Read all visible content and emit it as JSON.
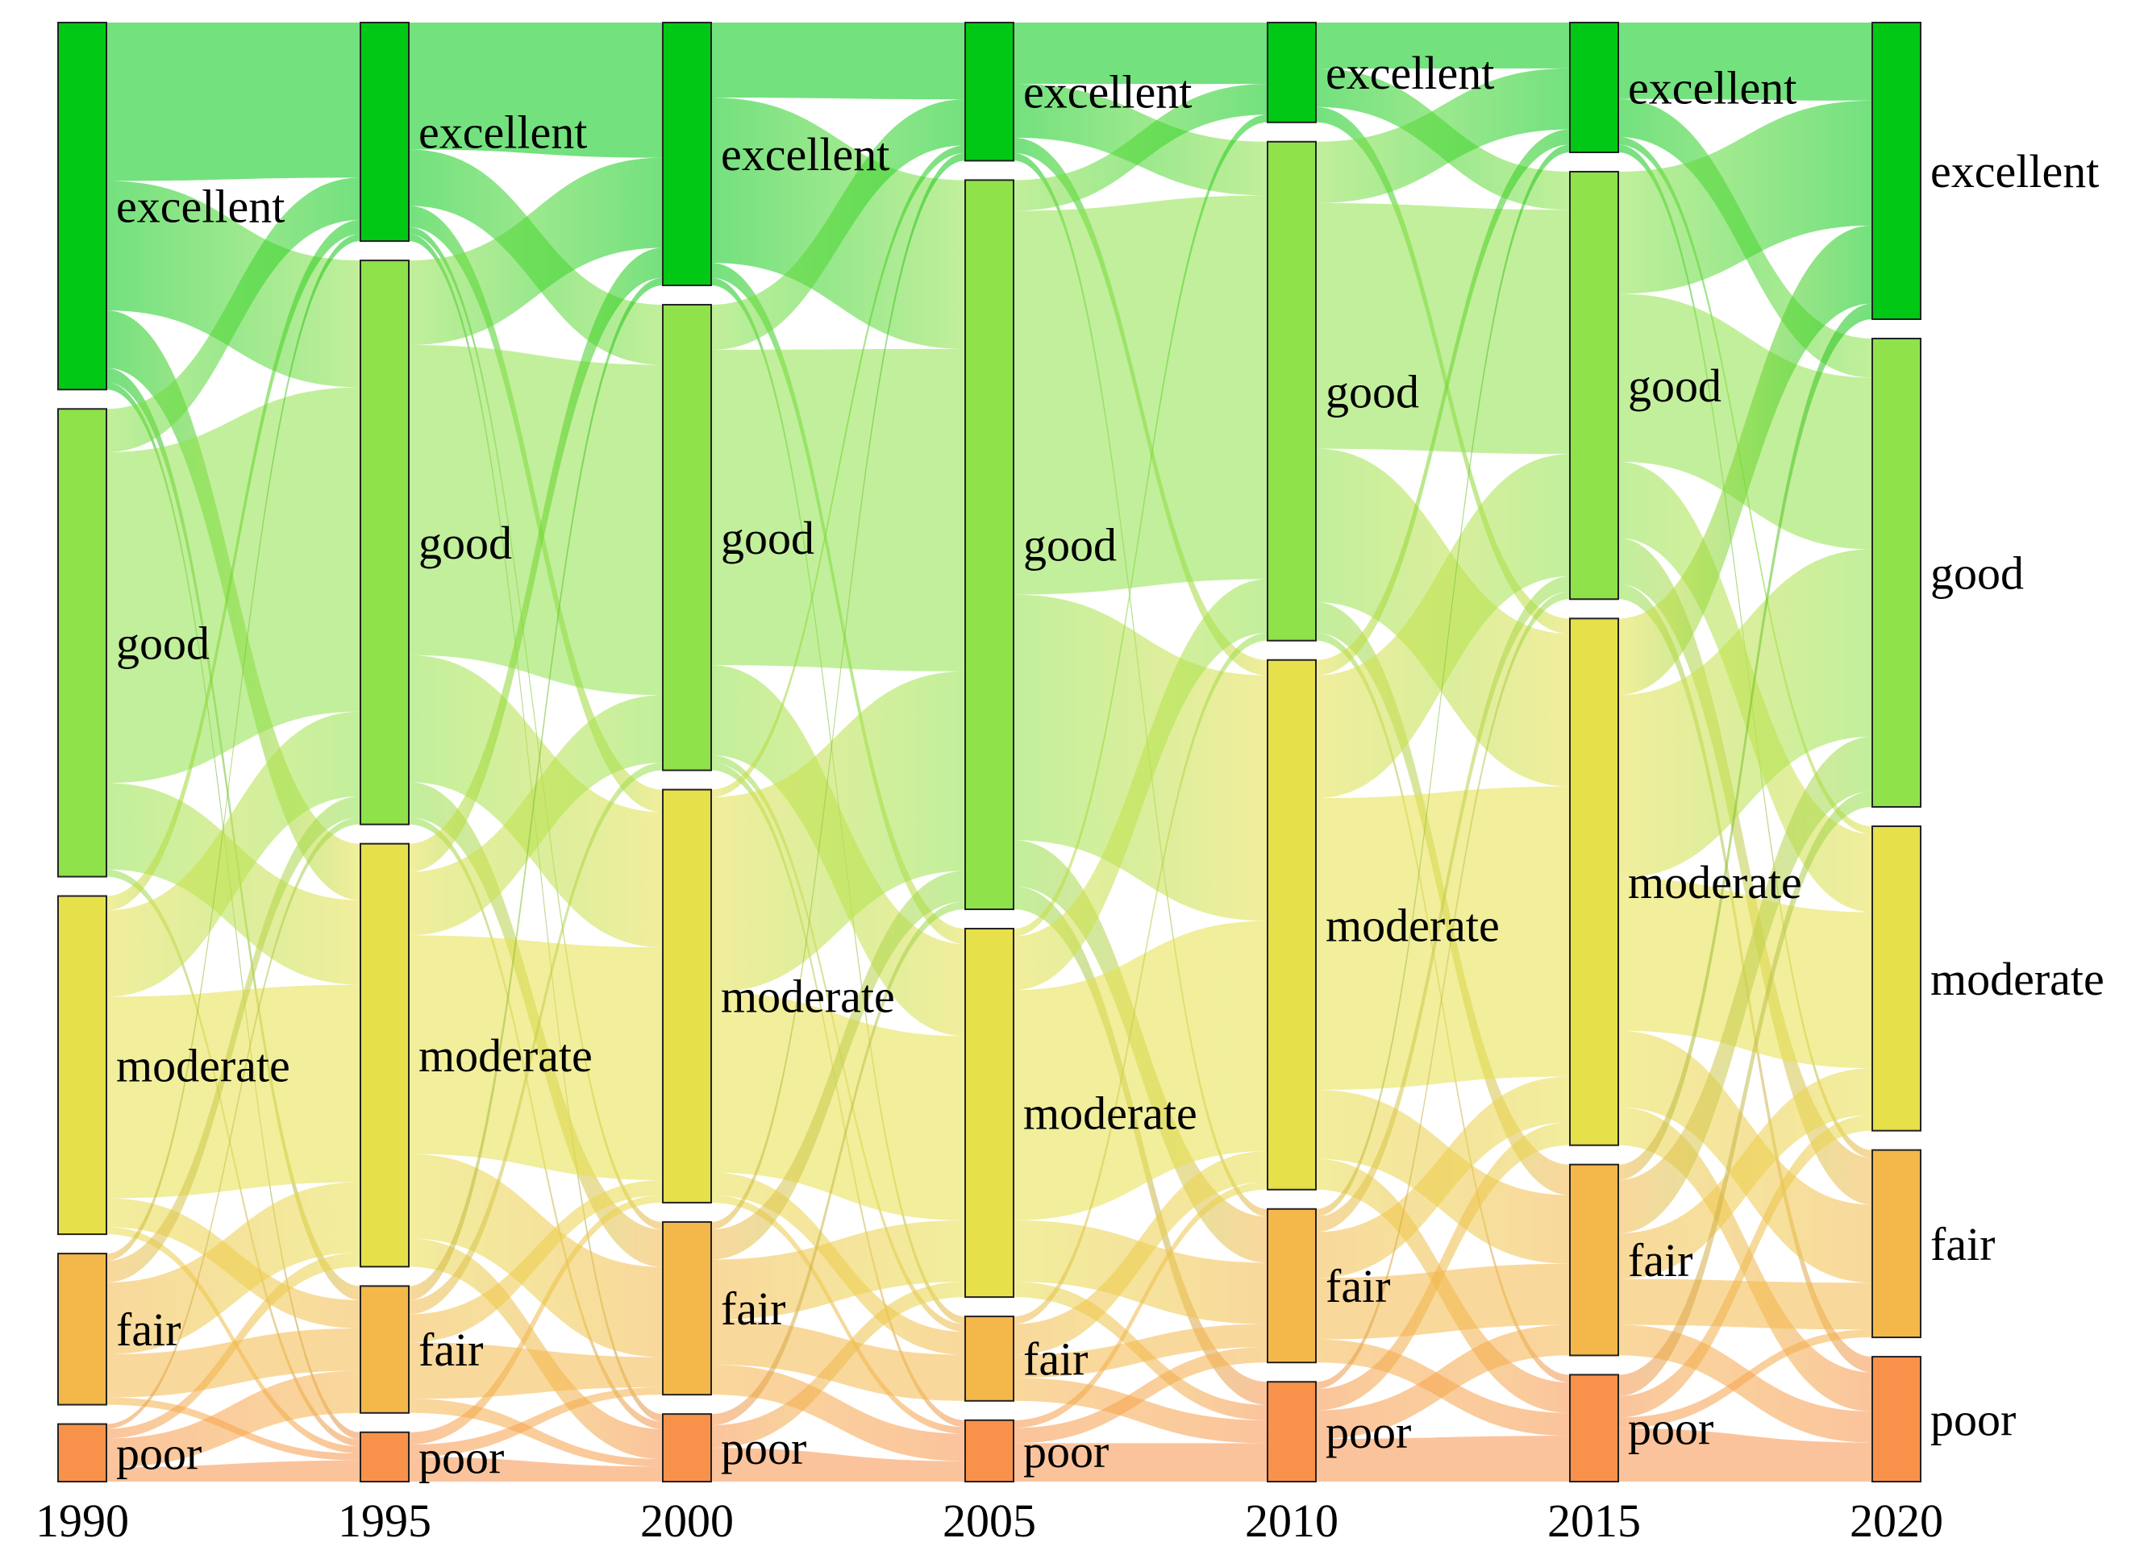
{
  "chart_data": {
    "type": "sankey",
    "title": "",
    "years": [
      "1990",
      "1995",
      "2000",
      "2005",
      "2010",
      "2015",
      "2020"
    ],
    "categories": [
      "excellent",
      "good",
      "moderate",
      "fair",
      "poor"
    ],
    "colors": {
      "excellent": "#00c814",
      "good": "#8fe24a",
      "moderate": "#e6e04a",
      "fair": "#f4b84a",
      "poor": "#f8924a"
    },
    "values": [
      [
        25.5,
        32.5,
        23.5,
        10.5,
        4.0
      ],
      [
        15.5,
        40.0,
        30.0,
        9.0,
        3.5
      ],
      [
        17.5,
        31.0,
        27.5,
        11.5,
        4.5
      ],
      [
        9.0,
        47.5,
        24.0,
        5.5,
        4.0
      ],
      [
        6.5,
        32.5,
        34.5,
        10.0,
        6.5
      ],
      [
        8.5,
        28.0,
        34.5,
        12.5,
        7.0
      ],
      [
        19.0,
        30.0,
        19.5,
        12.0,
        8.0
      ]
    ],
    "flows": [
      {
        "from_year": "1990",
        "to_year": "1995",
        "matrix": [
          [
            11,
            9,
            4,
            1,
            0.5
          ],
          [
            3,
            23,
            6,
            0,
            0.5
          ],
          [
            1,
            6,
            14,
            2,
            0.5
          ],
          [
            0.5,
            1.5,
            5,
            3,
            0.5
          ],
          [
            0,
            0.5,
            1,
            3,
            1.5
          ]
        ]
      },
      {
        "from_year": "1995",
        "to_year": "2000",
        "matrix": [
          [
            9,
            4,
            1.5,
            0.5,
            0.5
          ],
          [
            6,
            22,
            9,
            2.5,
            0.5
          ],
          [
            2,
            4.5,
            15.5,
            6,
            2
          ],
          [
            0.5,
            0.5,
            1,
            2,
            0.5
          ],
          [
            0,
            0,
            0.5,
            0.5,
            1
          ]
        ]
      },
      {
        "from_year": "2000",
        "to_year": "2005",
        "matrix": [
          [
            5,
            11,
            1,
            0.5,
            0
          ],
          [
            3,
            21,
            6,
            0.5,
            0.5
          ],
          [
            0.5,
            13,
            12,
            1.5,
            0.5
          ],
          [
            0.5,
            2,
            4,
            3,
            2
          ],
          [
            0,
            0.5,
            1,
            0,
            1.5
          ]
        ]
      },
      {
        "from_year": "2005",
        "to_year": "2010",
        "matrix": [
          [
            4,
            3.5,
            1,
            0.5,
            0
          ],
          [
            2,
            25,
            16,
            3,
            1.5
          ],
          [
            0.5,
            3.5,
            15,
            4,
            1
          ],
          [
            0,
            0.5,
            2,
            1.5,
            1.5
          ],
          [
            0,
            0,
            0.5,
            1,
            2.5
          ]
        ]
      },
      {
        "from_year": "2010",
        "to_year": "2015",
        "matrix": [
          [
            3,
            2.5,
            1,
            0,
            0
          ],
          [
            4,
            16,
            10,
            2,
            0.5
          ],
          [
            1,
            8,
            19,
            4.5,
            2
          ],
          [
            0.5,
            1,
            3,
            4,
            1.5
          ],
          [
            0,
            0.5,
            1.5,
            2,
            3
          ]
        ]
      },
      {
        "from_year": "2015",
        "to_year": "2020",
        "matrix": [
          [
            5,
            2.5,
            0.5,
            0.5,
            0
          ],
          [
            8,
            11,
            5,
            3,
            1
          ],
          [
            5,
            12,
            10,
            5,
            2.5
          ],
          [
            1,
            3.5,
            3,
            3,
            2
          ],
          [
            0,
            1,
            1,
            0.5,
            2.5
          ]
        ]
      }
    ]
  }
}
